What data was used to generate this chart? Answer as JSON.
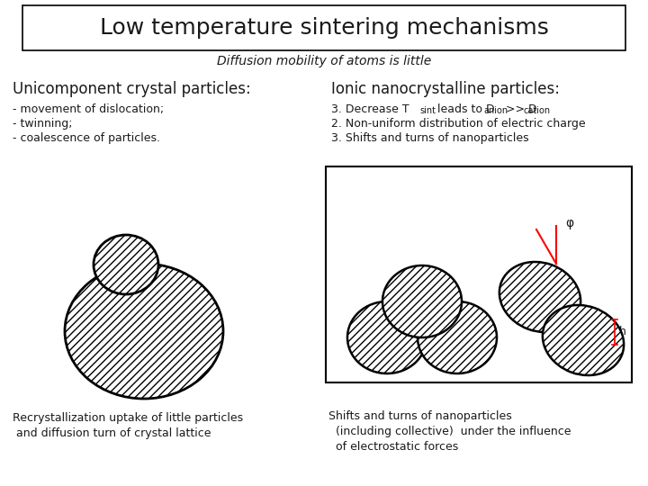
{
  "title": "Low temperature sintering mechanisms",
  "subtitle": "Diffusion mobility of atoms is little",
  "left_heading": "Unicomponent crystal particles:",
  "right_heading": "Ionic nanocrystalline particles:",
  "left_bullets": [
    "- movement of dislocation;",
    "- twinning;",
    "- coalescence of particles."
  ],
  "left_caption": "Recrystallization uptake of little particles\n and diffusion turn of crystal lattice",
  "right_caption": "Shifts and turns of nanoparticles\n  (including collective)  under the influence\n  of electrostatic forces",
  "bg_color": "#ffffff",
  "text_color": "#1a1a1a",
  "title_fontsize": 18,
  "subtitle_fontsize": 10,
  "heading_fontsize": 12,
  "bullet_fontsize": 9,
  "caption_fontsize": 9
}
